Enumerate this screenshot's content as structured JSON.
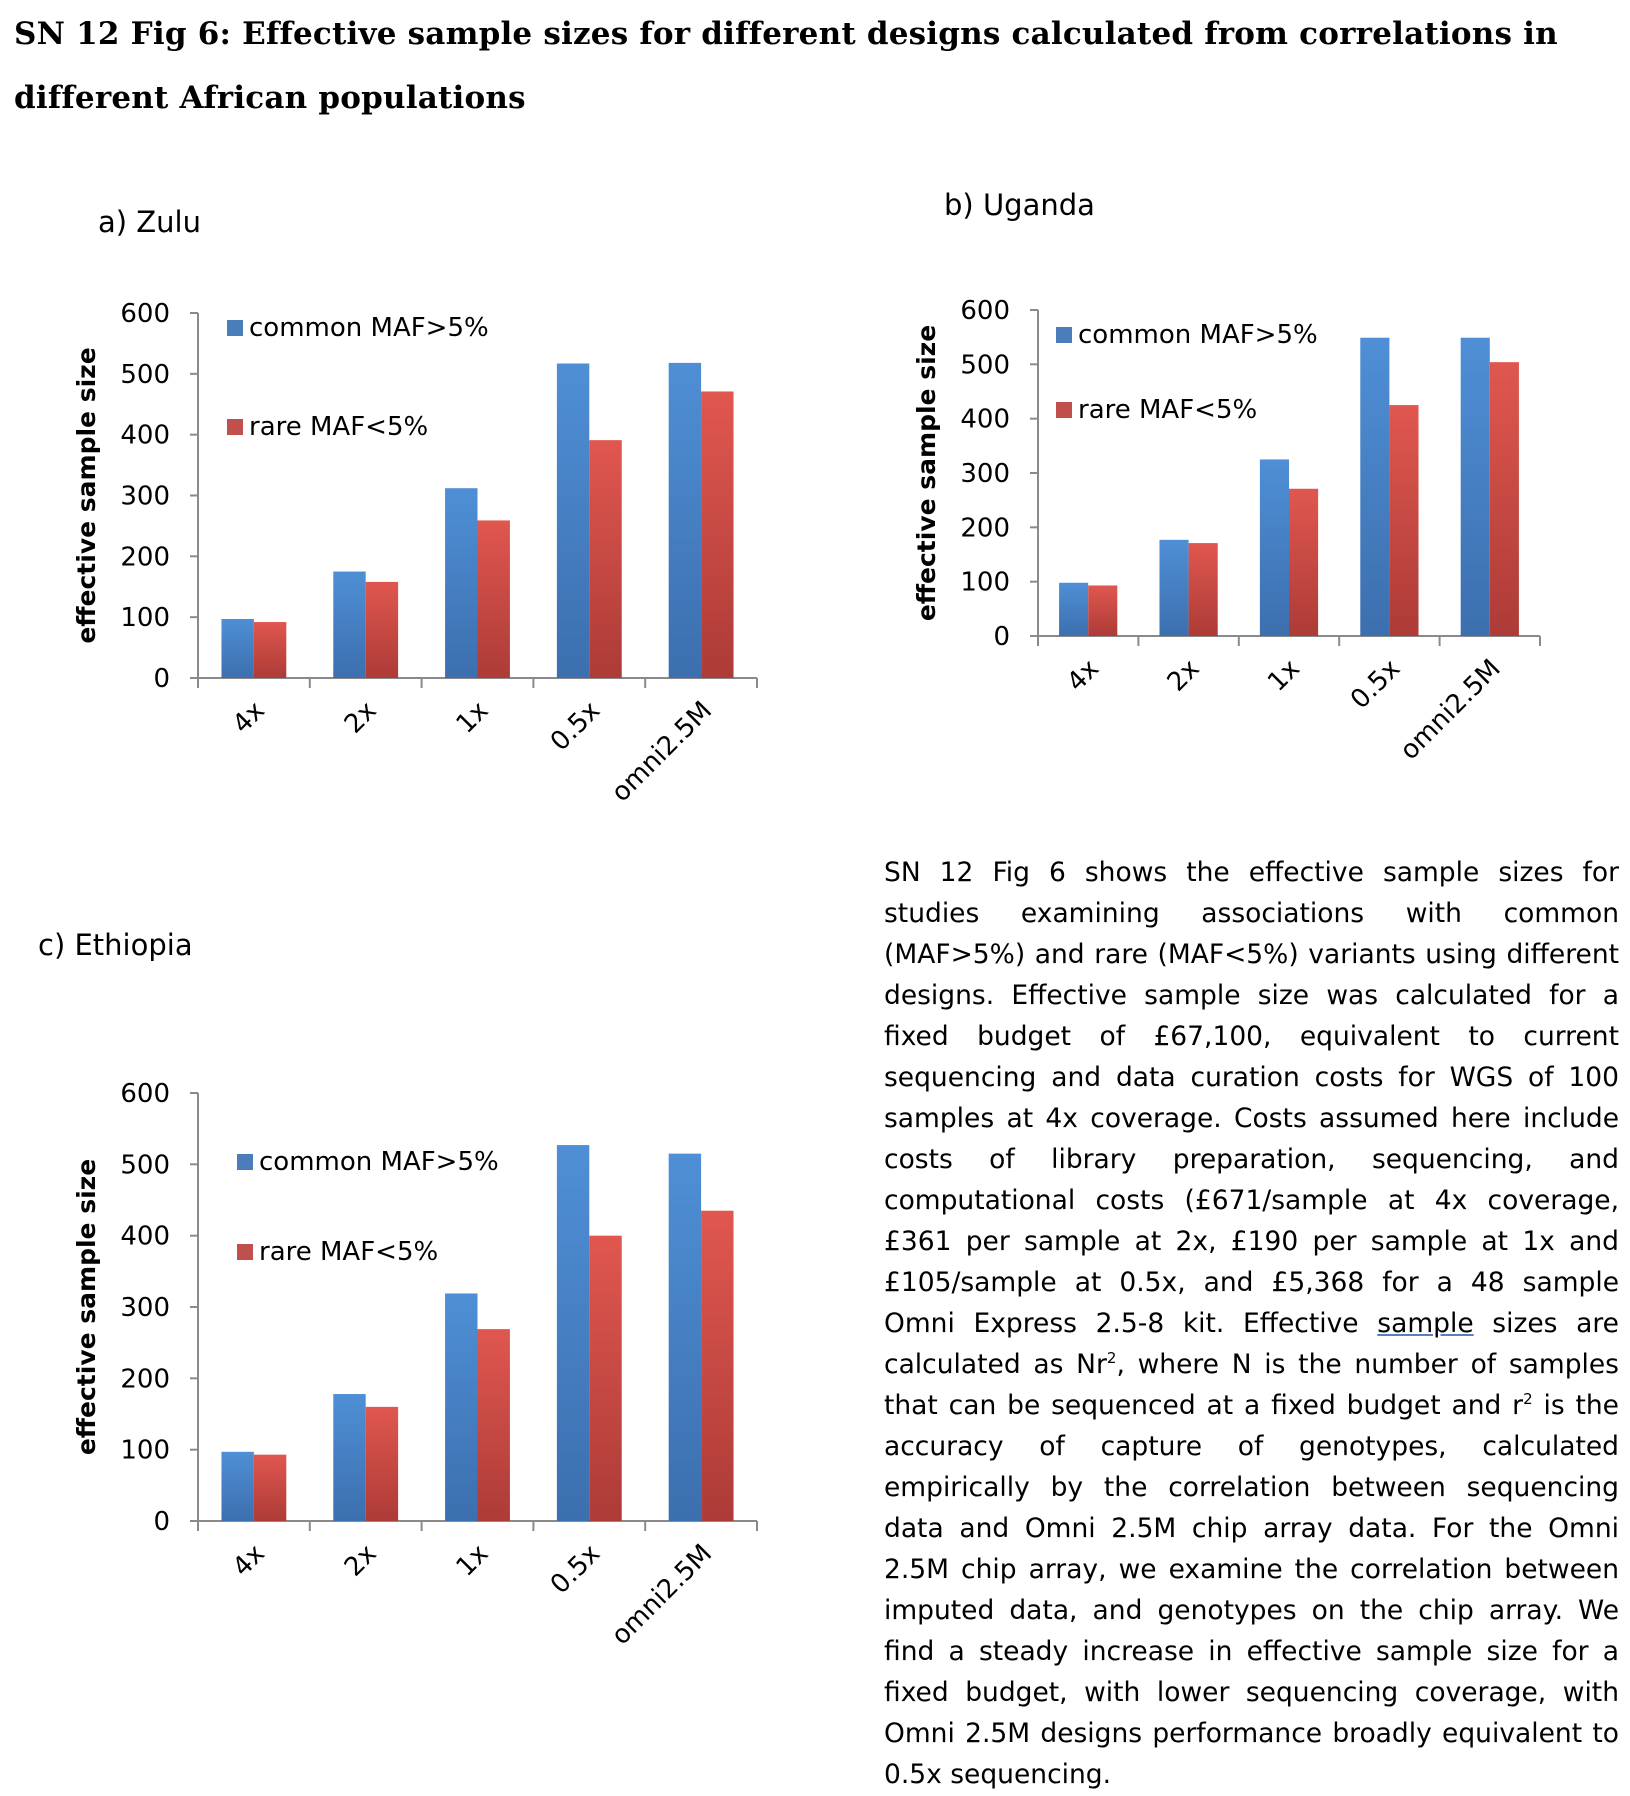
{
  "figure": {
    "title": "SN 12 Fig 6: Effective sample sizes for different designs calculated from correlations in different African populations"
  },
  "colors": {
    "common": "#4a7ebb",
    "rare": "#c0504d"
  },
  "chart_data": [
    {
      "type": "bar",
      "title": "a) Zulu",
      "ylabel": "effective sample size",
      "ylim": [
        0,
        600
      ],
      "yticks": [
        "0",
        "100",
        "200",
        "300",
        "400",
        "500",
        "600"
      ],
      "categories": [
        "4x",
        "2x",
        "1x",
        "0.5x",
        "omni2.5M"
      ],
      "series": [
        {
          "name": "common MAF>5%",
          "values": [
            97,
            175,
            312,
            517,
            518
          ]
        },
        {
          "name": "rare MAF<5%",
          "values": [
            92,
            158,
            259,
            391,
            471
          ]
        }
      ],
      "legend": "top-left",
      "grid": false
    },
    {
      "type": "bar",
      "title": "b) Uganda",
      "ylabel": "effective sample size",
      "ylim": [
        0,
        600
      ],
      "yticks": [
        "0",
        "100",
        "200",
        "300",
        "400",
        "500",
        "600"
      ],
      "categories": [
        "4x",
        "2x",
        "1x",
        "0.5x",
        "omni2.5M"
      ],
      "series": [
        {
          "name": "common MAF>5%",
          "values": [
            98,
            177,
            325,
            549,
            549
          ]
        },
        {
          "name": "rare MAF<5%",
          "values": [
            93,
            171,
            271,
            425,
            504
          ]
        }
      ],
      "legend": "top-left",
      "grid": false
    },
    {
      "type": "bar",
      "title": "c) Ethiopia",
      "ylabel": "effective sample size",
      "ylim": [
        0,
        600
      ],
      "yticks": [
        "0",
        "100",
        "200",
        "300",
        "400",
        "500",
        "600"
      ],
      "categories": [
        "4x",
        "2x",
        "1x",
        "0.5x",
        "omni2.5M"
      ],
      "series": [
        {
          "name": "common MAF>5%",
          "values": [
            97,
            178,
            319,
            527,
            515
          ]
        },
        {
          "name": "rare MAF<5%",
          "values": [
            93,
            160,
            269,
            400,
            435
          ]
        }
      ],
      "legend": "top-left",
      "grid": false
    }
  ],
  "description": {
    "part1": "SN 12 Fig 6 shows the effective sample sizes for studies examining associations with common (MAF>5%) and rare (MAF<5%) variants using different designs. Effective sample size was calculated for a fixed budget of £67,100, equivalent to current sequencing and data curation costs for WGS of 100 samples at 4x coverage. Costs assumed here include costs of library preparation, sequencing, and computational costs (£671/sample at 4x coverage, £361 per sample at 2x, £190 per sample at 1x and £105/sample at 0.5x, and £5,368 for a 48 sample Omni Express 2.5-8 kit. Effective ",
    "underlined": "sample",
    "part2": " sizes are calculated as Nr",
    "sup1": "2",
    "part3": ", where N is the number of samples that can be sequenced at a fixed budget and r",
    "sup2": "2",
    "part4": " is the accuracy of capture of genotypes, calculated empirically by the correlation between sequencing data and Omni 2.5M chip array data. For the Omni 2.5M chip array, we examine the correlation between imputed data, and genotypes on the chip array. We find a steady increase in effective sample size for a fixed budget, with lower sequencing coverage, with Omni 2.5M designs performance broadly equivalent to 0.5x sequencing."
  }
}
